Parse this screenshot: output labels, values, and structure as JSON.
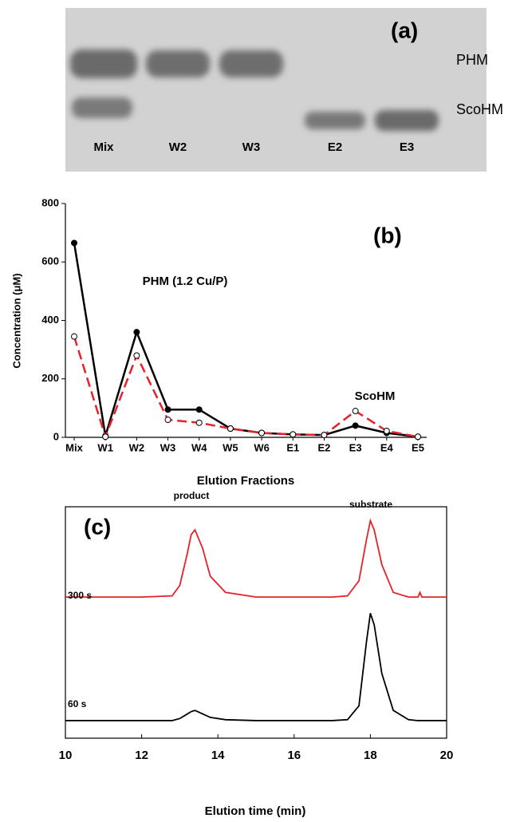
{
  "gel": {
    "panel_label": "(a)",
    "band_labels": [
      "PHM",
      "ScoHM"
    ],
    "lanes": [
      "Mix",
      "W2",
      "W3",
      "E2",
      "E3"
    ]
  },
  "chart_data": [
    {
      "type": "line",
      "panel_label": "(b)",
      "annotations": [
        "PHM (1.2 Cu/P)",
        "ScoHM"
      ],
      "x_label": "Elution Fractions",
      "y_label": "Concentration (μM)",
      "categories": [
        "Mix",
        "W1",
        "W2",
        "W3",
        "W4",
        "W5",
        "W6",
        "E1",
        "E2",
        "E3",
        "E4",
        "E5"
      ],
      "series": [
        {
          "color": "#000000",
          "dashed": false,
          "marker": "filled",
          "values": [
            665,
            5,
            360,
            95,
            95,
            30,
            15,
            10,
            8,
            40,
            15,
            2
          ]
        },
        {
          "color": "#e8202a",
          "dashed": true,
          "marker": "open",
          "values": [
            345,
            2,
            280,
            60,
            50,
            30,
            15,
            10,
            8,
            90,
            22,
            2
          ]
        }
      ],
      "ylim": [
        0,
        800
      ],
      "yticks": [
        0,
        200,
        400,
        600,
        800
      ]
    },
    {
      "type": "line",
      "panel_label": "(c)",
      "annotations": [
        "product",
        "substrate"
      ],
      "x_label": "Elution time (min)",
      "x": [
        10,
        12,
        12.8,
        13.0,
        13.2,
        13.3,
        13.4,
        13.6,
        13.8,
        14.2,
        15,
        17,
        17.4,
        17.7,
        17.9,
        18.0,
        18.1,
        18.3,
        18.6,
        19,
        19.25,
        19.3,
        19.35,
        20
      ],
      "series": [
        {
          "name": "300 s",
          "color": "#e8202a",
          "values": [
            61,
            61,
            61.5,
            66,
            80,
            88,
            90,
            82,
            70,
            63,
            61,
            61,
            61.5,
            68,
            86,
            94,
            90,
            75,
            63,
            61,
            61,
            63,
            61,
            61
          ]
        },
        {
          "name": "60 s",
          "color": "#000000",
          "values": [
            7.6,
            7.6,
            7.6,
            8.5,
            10.5,
            11.5,
            12,
            10.5,
            9,
            8,
            7.6,
            7.6,
            8,
            14,
            42,
            54,
            49,
            28,
            12,
            8,
            7.6,
            7.6,
            7.6,
            7.6
          ]
        }
      ],
      "xlim": [
        10,
        20
      ],
      "xticks": [
        10,
        12,
        14,
        16,
        18,
        20
      ],
      "ylim": [
        0,
        100
      ]
    }
  ]
}
